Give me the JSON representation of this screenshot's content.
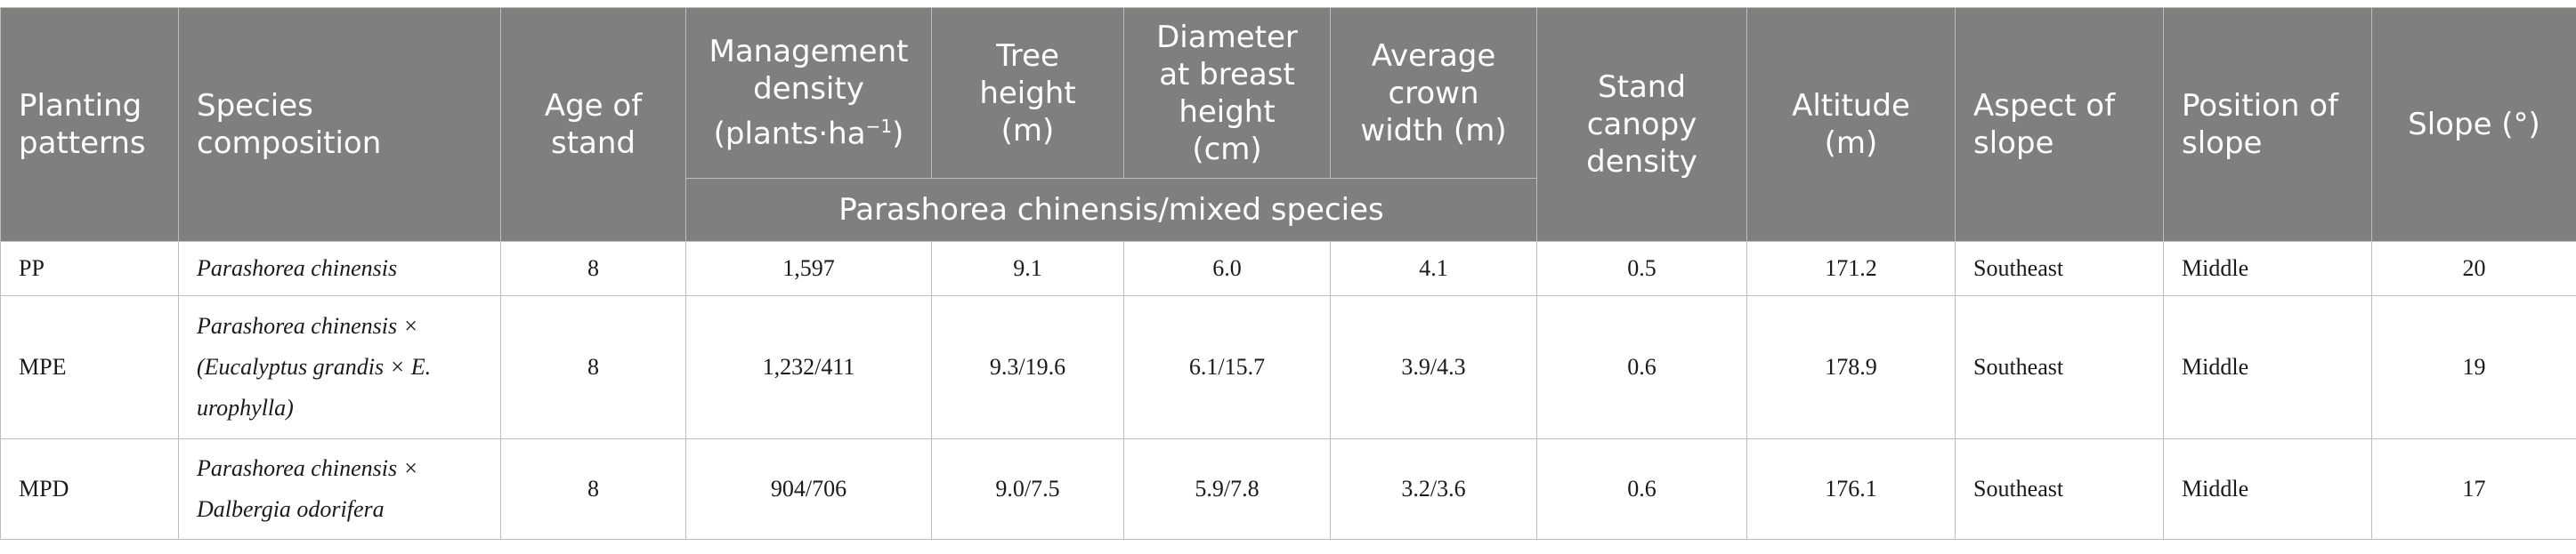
{
  "headers": {
    "planting_patterns": "Planting patterns",
    "species_composition": "Species composition",
    "age_of_stand": "Age of stand",
    "management_density_line1": "Management density",
    "management_density_line2": "(plants·ha",
    "management_density_sup": "−1",
    "management_density_close": ")",
    "tree_height": "Tree height (m)",
    "dbh": "Diameter at breast height (cm)",
    "crown_width": "Average crown width (m)",
    "canopy_density": "Stand canopy density",
    "altitude": "Altitude (m)",
    "aspect": "Aspect of slope",
    "position": "Position of slope",
    "slope": "Slope (°)",
    "group_label": "Parashorea chinensis/mixed species"
  },
  "rows": [
    {
      "pattern": "PP",
      "species": "Parashorea chinensis",
      "age": "8",
      "density": "1,597",
      "height": "9.1",
      "dbh": "6.0",
      "crown": "4.1",
      "canopy": "0.5",
      "altitude": "171.2",
      "aspect": "Southeast",
      "position": "Middle",
      "slope": "20"
    },
    {
      "pattern": "MPE",
      "species": "Parashorea chinensis × (Eucalyptus grandis × E. urophylla)",
      "age": "8",
      "density": "1,232/411",
      "height": "9.3/19.6",
      "dbh": "6.1/15.7",
      "crown": "3.9/4.3",
      "canopy": "0.6",
      "altitude": "178.9",
      "aspect": "Southeast",
      "position": "Middle",
      "slope": "19"
    },
    {
      "pattern": "MPD",
      "species": "Parashorea chinensis × Dalbergia odorifera",
      "age": "8",
      "density": "904/706",
      "height": "9.0/7.5",
      "dbh": "5.9/7.8",
      "crown": "3.2/3.6",
      "canopy": "0.6",
      "altitude": "176.1",
      "aspect": "Southeast",
      "position": "Middle",
      "slope": "17"
    }
  ]
}
